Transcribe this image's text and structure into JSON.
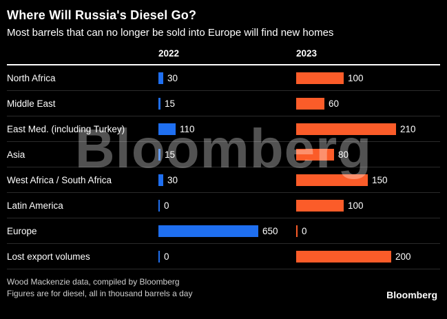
{
  "title": "Where Will Russia's Diesel Go?",
  "subtitle": "Most barrels that can no longer be sold into Europe will find new homes",
  "watermark": "Bloomberg",
  "footer": {
    "source_line1": "Wood Mackenzie data, compiled by Bloomberg",
    "source_line2": "Figures are for diesel, all in thousand barrels a day",
    "logo": "Bloomberg"
  },
  "colors": {
    "background": "#000000",
    "bar_2022": "#1f6ff0",
    "bar_2023": "#fb5c29",
    "text": "#ffffff",
    "row_separator": "#2b2b2b",
    "header_rule": "#ffffff"
  },
  "chart_data": {
    "type": "bar",
    "orientation": "horizontal",
    "title": "Where Will Russia's Diesel Go?",
    "subtitle": "Most barrels that can no longer be sold into Europe will find new homes",
    "unit": "thousand barrels a day",
    "legend_position": "column headers",
    "grid": false,
    "categories": [
      "North Africa",
      "Middle East",
      "East Med. (including Turkey)",
      "Asia",
      "West Africa / South Africa",
      "Latin America",
      "Europe",
      "Lost export volumes"
    ],
    "series": [
      {
        "name": "2022",
        "color": "#1f6ff0",
        "values": [
          30,
          15,
          110,
          15,
          30,
          0,
          650,
          0
        ],
        "axis_max": 650
      },
      {
        "name": "2023",
        "color": "#fb5c29",
        "values": [
          100,
          60,
          210,
          80,
          150,
          100,
          0,
          200
        ],
        "axis_max": 210
      }
    ]
  }
}
